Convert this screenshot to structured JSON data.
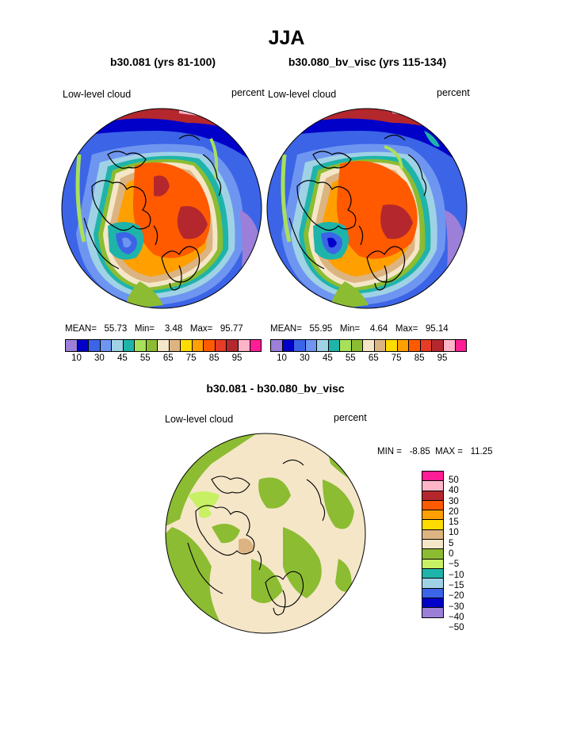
{
  "title": "JJA",
  "panel_left": {
    "title": "b30.081 (yrs 81-100)",
    "variable": "Low-level cloud",
    "units": "percent",
    "stats": "MEAN=   55.73   Min=    3.48   Max=   95.77"
  },
  "panel_right": {
    "title": "b30.080_bv_visc (yrs 115-134)",
    "variable": "Low-level cloud",
    "units": "percent",
    "stats": "MEAN=   55.95   Min=    4.64   Max=   95.14"
  },
  "panel_diff": {
    "title": "b30.081 - b30.080_bv_visc",
    "variable": "Low-level cloud",
    "units": "percent",
    "stats": "MIN =   -8.85  MAX =   11.25"
  },
  "colorbar_top": {
    "colors": [
      "#9b7fd8",
      "#0000c8",
      "#3c64e6",
      "#6e96f0",
      "#a0d2e6",
      "#1fb4aa",
      "#a8e05a",
      "#8cbc32",
      "#f5e6c8",
      "#dcb482",
      "#ffdc00",
      "#ffa000",
      "#ff5a00",
      "#e63c28",
      "#b4282d",
      "#ffb4c8",
      "#ff1e96"
    ],
    "tick_labels": [
      "10",
      "30",
      "45",
      "55",
      "65",
      "75",
      "85",
      "95"
    ]
  },
  "colorbar_diff": {
    "colors": [
      "#ff1e96",
      "#ffb4c8",
      "#b4282d",
      "#ff5a00",
      "#ffa000",
      "#ffdc00",
      "#dcb482",
      "#f5e6c8",
      "#8cbc32",
      "#c8f064",
      "#1fb4aa",
      "#a0d2e6",
      "#3c64e6",
      "#0000c8",
      "#9b7fd8"
    ],
    "labels": [
      "50",
      "40",
      "30",
      "20",
      "15",
      "10",
      "5",
      "0",
      "−5",
      "−10",
      "−15",
      "−20",
      "−30",
      "−40",
      "−50"
    ]
  }
}
